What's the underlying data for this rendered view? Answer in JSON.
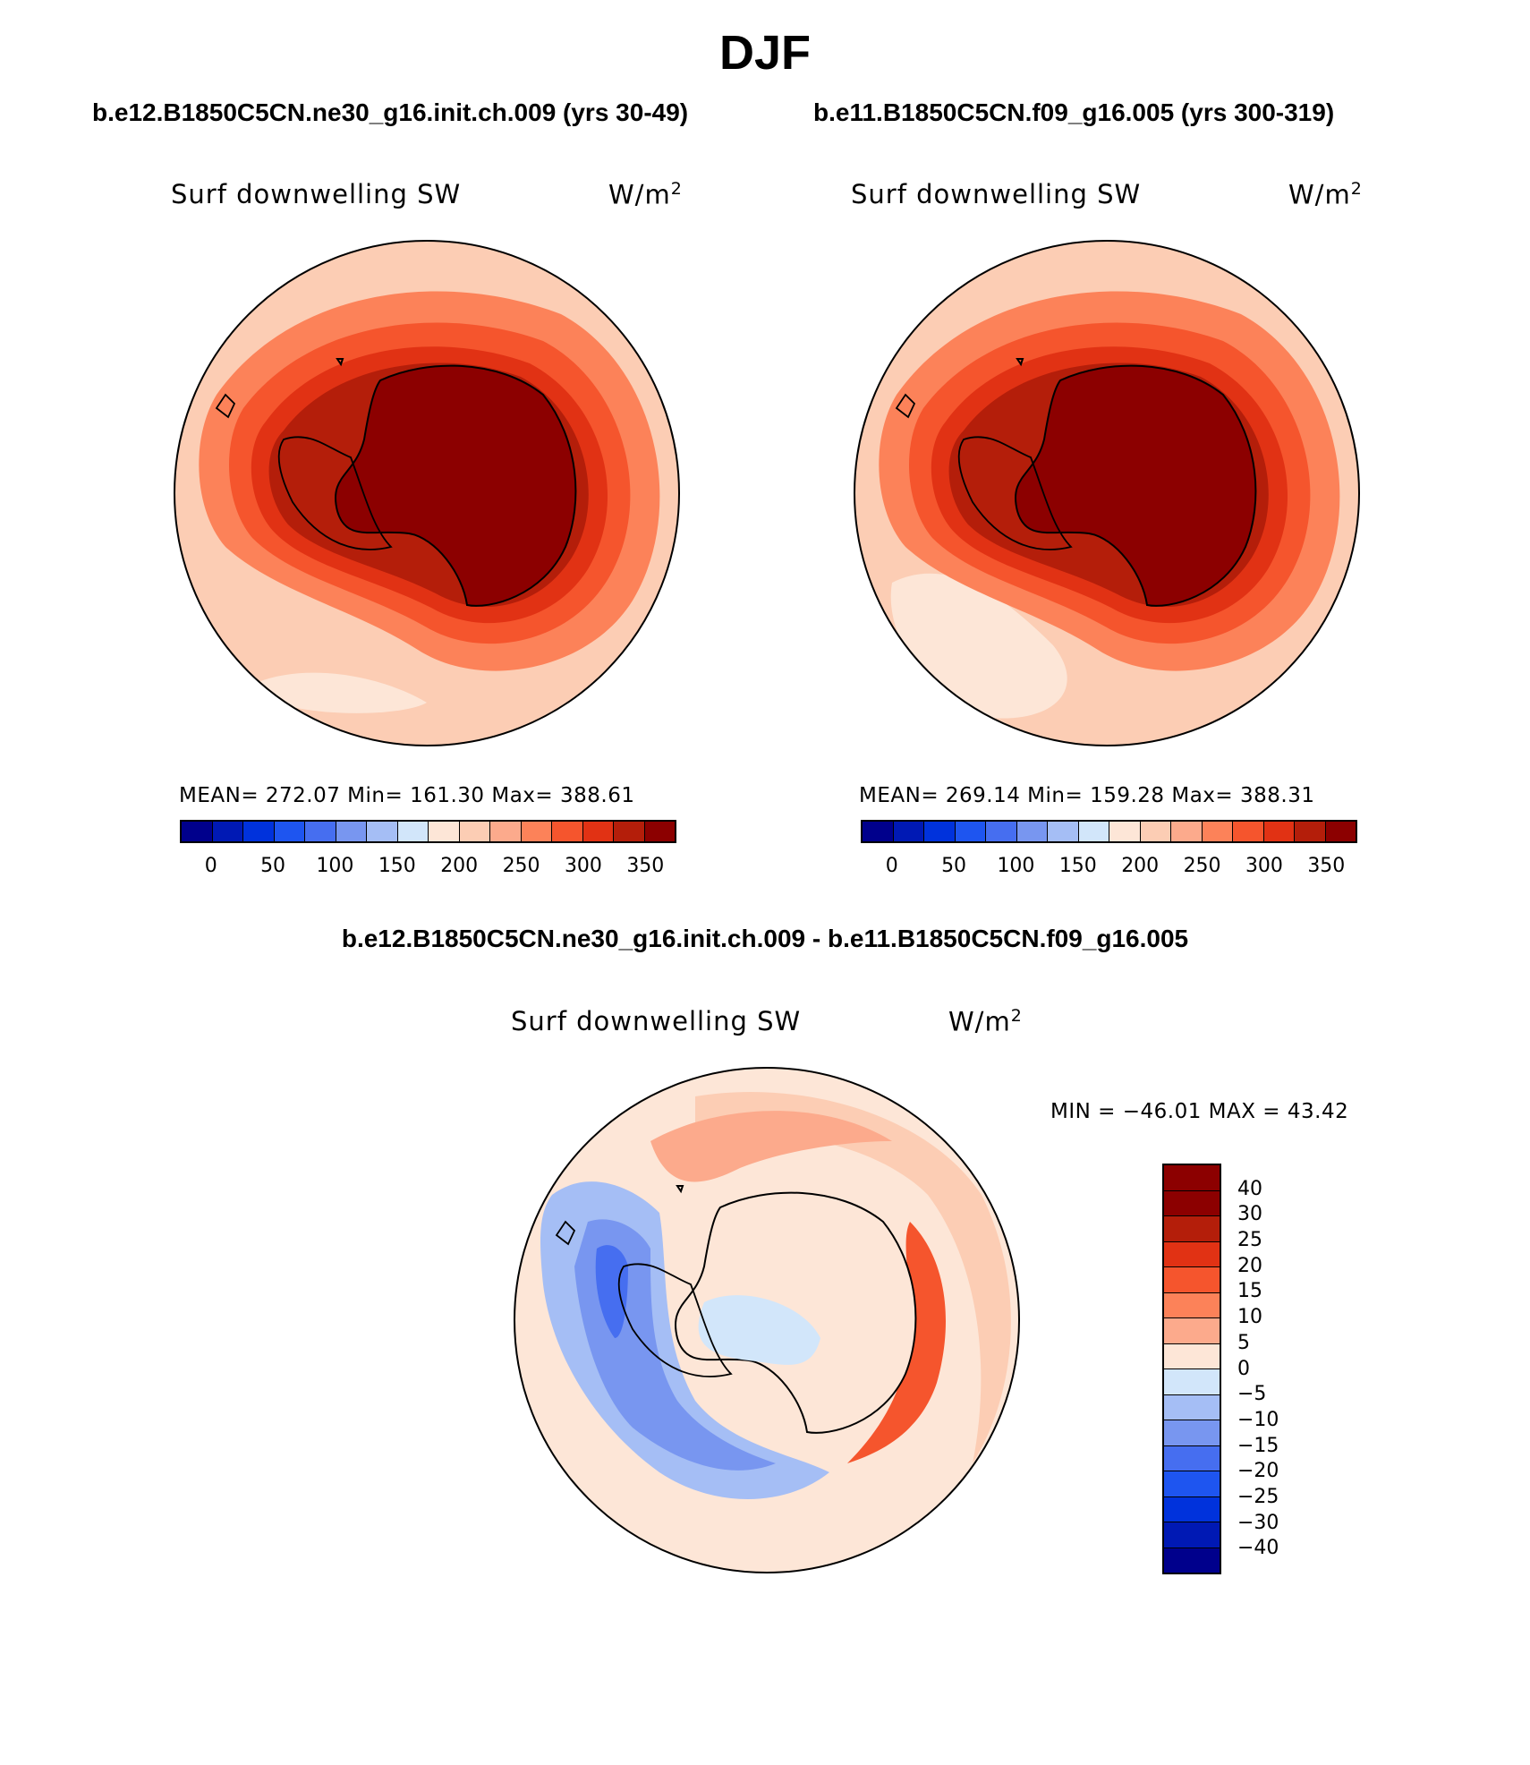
{
  "figure_title": "DJF",
  "case1": {
    "title": "b.e12.B1850C5CN.ne30_g16.init.ch.009 (yrs 30-49)",
    "variable": "Surf downwelling SW",
    "units": "W/m",
    "units_exp": "2",
    "stats": "MEAN= 272.07   Min= 161.30   Max= 388.61"
  },
  "case2": {
    "title": "b.e11.B1850C5CN.f09_g16.005 (yrs 300-319)",
    "variable": "Surf downwelling SW",
    "units": "W/m",
    "units_exp": "2",
    "stats": "MEAN= 269.14   Min= 159.28   Max= 388.31"
  },
  "diff": {
    "title": "b.e12.B1850C5CN.ne30_g16.init.ch.009 - b.e11.B1850C5CN.f09_g16.005",
    "variable": "Surf downwelling SW",
    "units": "W/m",
    "units_exp": "2",
    "minmax": "MIN = −46.01  MAX =   43.42"
  },
  "abs_colorbar": {
    "colors": [
      "#00008c",
      "#0019b4",
      "#0032dc",
      "#1e55f0",
      "#466ef0",
      "#7896f0",
      "#a5bef5",
      "#d2e6fa",
      "#fde6d7",
      "#fccdb4",
      "#fcaa8c",
      "#fc8259",
      "#f5552d",
      "#e13214",
      "#b41e0a",
      "#8c0000"
    ],
    "labels": [
      "0",
      "50",
      "100",
      "150",
      "200",
      "250",
      "300",
      "350"
    ]
  },
  "diff_colorbar": {
    "colors": [
      "#8c0000",
      "#b41e0a",
      "#e13214",
      "#f5552d",
      "#fc8259",
      "#fcaa8c",
      "#fde6d7",
      "#d2e6fa",
      "#a5bef5",
      "#7896f0",
      "#466ef0",
      "#1e55f0",
      "#0032dc",
      "#0019b4",
      "#00008c"
    ],
    "labels": [
      "40",
      "30",
      "25",
      "20",
      "15",
      "10",
      "5",
      "0",
      "−5",
      "−10",
      "−15",
      "−20",
      "−25",
      "−30",
      "−40"
    ]
  },
  "map_colors": {
    "ocean_outer": "#fccdb4",
    "ocean_pale": "#fde6d7",
    "ring1": "#fc8259",
    "ring2": "#f5552d",
    "ring3": "#e13214",
    "ring4": "#b41e0a",
    "ice": "#8c0000",
    "diff_land": "#fde6d7",
    "diff_neg1": "#d2e6fa",
    "diff_neg2": "#a5bef5",
    "diff_neg3": "#7896f0",
    "diff_neg4": "#466ef0",
    "diff_pos1": "#fccdb4",
    "diff_pos2": "#fcaa8c",
    "diff_pos3": "#fc8259",
    "diff_pos4": "#f5552d"
  }
}
